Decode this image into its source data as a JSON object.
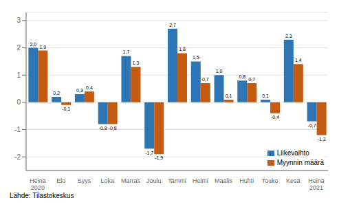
{
  "chart_data": {
    "type": "bar",
    "categories": [
      "Heinä\n2020",
      "Elo",
      "Syys",
      "Loka",
      "Marras",
      "Joulu",
      "Tammi",
      "Helmi",
      "Maalis",
      "Huhti",
      "Touko",
      "Kesä",
      "Heinä\n2021"
    ],
    "series": [
      {
        "name": "Liikevaihto",
        "color": "#2e75b6",
        "values": [
          2.0,
          0.2,
          0.3,
          -0.8,
          1.7,
          -1.7,
          2.7,
          1.5,
          1.0,
          0.8,
          0.1,
          2.3,
          -0.7
        ],
        "value_labels": [
          "2,0",
          "0,2",
          "0,3",
          "-0,8",
          "1,7",
          "-1,7",
          "2,7",
          "1,5",
          "1,0",
          "0,8",
          "0,1",
          "2,3",
          "-0,7"
        ]
      },
      {
        "name": "Myynnin määrä",
        "color": "#c55a11",
        "values": [
          1.9,
          -0.1,
          0.4,
          -0.8,
          1.3,
          -1.9,
          1.8,
          0.7,
          0.1,
          0.7,
          -0.4,
          1.4,
          -1.2
        ],
        "value_labels": [
          "1,9",
          "-0,1",
          "0,4",
          "-0,8",
          "1,3",
          "-1,9",
          "1,8",
          "0,7",
          "0,1",
          "0,7",
          "-0,4",
          "1,4",
          "-1,2"
        ]
      }
    ],
    "ylim": [
      -2.5,
      3.3
    ],
    "yticks": [
      -2,
      -1,
      0,
      1,
      2,
      3
    ],
    "grid": true,
    "legend": "lower right",
    "data_labels": true,
    "annotations": [
      "Lähde: Tilastokeskus"
    ]
  }
}
